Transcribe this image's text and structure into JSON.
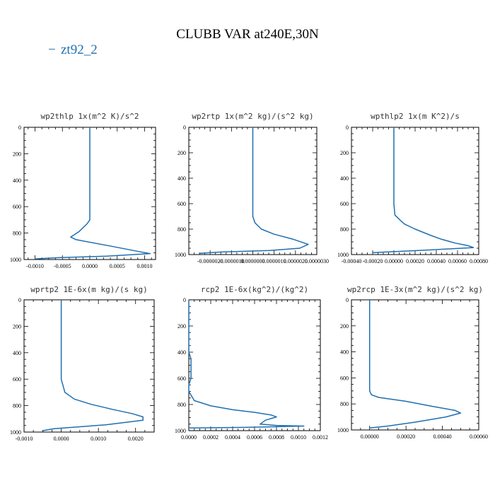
{
  "figure": {
    "title": "CLUBB VAR at240E,30N",
    "legend": {
      "line_symbol": "−",
      "label": "zt92_2",
      "color": "#1f6fb0"
    }
  },
  "chart_data": [
    {
      "type": "line",
      "title": "wp2thlp   1x(m^2 K)/s^2",
      "series_name": "zt92_2",
      "xlim": [
        -0.0012,
        0.0012
      ],
      "xticks": [
        -0.001,
        -0.0005,
        0,
        0.0005,
        0.001
      ],
      "xtick_labels": [
        "-0.0010",
        "-0.0005",
        "0.0000",
        "0.0005",
        "0.0010"
      ],
      "ylim": [
        0,
        1000
      ],
      "yticks": [
        0,
        200,
        400,
        600,
        800,
        1000
      ],
      "ytick_labels": [
        "0",
        "200",
        "400",
        "600",
        "800",
        "1000"
      ],
      "x": [
        0.0,
        0.0,
        0.0,
        0.0,
        -5e-05,
        -0.0002,
        -0.00035,
        -0.00025,
        0.0004,
        0.0009,
        0.0011,
        0.0003,
        -0.00055,
        -0.001
      ],
      "y": [
        0,
        200,
        400,
        700,
        730,
        790,
        830,
        850,
        900,
        940,
        955,
        975,
        985,
        995
      ]
    },
    {
      "type": "line",
      "title": "wp2rtp   1x(m^2 kg)/(s^2 kg)",
      "series_name": "zt92_2",
      "xlim": [
        -3e-06,
        3e-06
      ],
      "xticks": [
        -2e-06,
        -1e-06,
        0,
        1e-06,
        2e-06,
        3e-06
      ],
      "xtick_labels": [
        "-0.0000020",
        "-0.0000010",
        "0.0000000",
        "0.0000010",
        "0.0000020",
        "0.0000030"
      ],
      "ylim": [
        0,
        1000
      ],
      "yticks": [
        0,
        200,
        400,
        600,
        800,
        1000
      ],
      "ytick_labels": [
        "0",
        "200",
        "400",
        "600",
        "800",
        "1000"
      ],
      "x": [
        0.0,
        0.0,
        0.0,
        0.0,
        1e-07,
        4e-07,
        1e-06,
        1.9e-06,
        2.6e-06,
        2.2e-06,
        8e-07,
        -1.5e-06,
        -2.5e-06
      ],
      "y": [
        0,
        300,
        600,
        700,
        750,
        800,
        840,
        880,
        920,
        950,
        968,
        980,
        990
      ]
    },
    {
      "type": "line",
      "title": "wpthlp2   1x(m K^2)/s",
      "series_name": "zt92_2",
      "xlim": [
        -0.0004,
        0.0008
      ],
      "xticks": [
        -0.0004,
        -0.0002,
        0,
        0.0002,
        0.0004,
        0.0006,
        0.0008
      ],
      "xtick_labels": [
        "-0.00040",
        "-0.00020",
        "0.00000",
        "0.00020",
        "0.00040",
        "0.00060",
        "0.00080"
      ],
      "ylim": [
        0,
        1000
      ],
      "yticks": [
        0,
        200,
        400,
        600,
        800,
        1000
      ],
      "ytick_labels": [
        "0",
        "200",
        "400",
        "600",
        "800",
        "1000"
      ],
      "x": [
        0.0,
        0.0,
        0.0,
        1e-05,
        6e-05,
        0.0001,
        0.0002,
        0.00035,
        0.00045,
        0.00058,
        0.0007,
        0.00075,
        0.0003,
        -0.0002
      ],
      "y": [
        0,
        300,
        600,
        690,
        730,
        760,
        800,
        850,
        880,
        910,
        930,
        945,
        965,
        985
      ]
    },
    {
      "type": "line",
      "title": "wprtp2   1E-6x(m kg)/(s kg)",
      "series_name": "zt92_2",
      "xlim": [
        -0.001,
        0.0025
      ],
      "xticks": [
        -0.001,
        0,
        0.001,
        0.002
      ],
      "xtick_labels": [
        "-0.0010",
        "0.0000",
        "0.0010",
        "0.0020"
      ],
      "ylim": [
        0,
        1000
      ],
      "yticks": [
        0,
        200,
        400,
        600,
        800,
        1000
      ],
      "ytick_labels": [
        "0",
        "200",
        "400",
        "600",
        "800",
        "1000"
      ],
      "x": [
        0.0,
        0.0,
        0.0,
        0.0001,
        0.00035,
        0.0008,
        0.0014,
        0.0019,
        0.0022,
        0.0022,
        0.0012,
        -0.0002,
        -0.0005
      ],
      "y": [
        0,
        300,
        600,
        700,
        750,
        790,
        830,
        860,
        885,
        910,
        945,
        975,
        990
      ]
    },
    {
      "type": "line",
      "title": "rcp2   1E-6x(kg^2)/(kg^2)",
      "series_name": "zt92_2",
      "xlim": [
        0,
        0.0012
      ],
      "xticks": [
        0,
        0.0002,
        0.0004,
        0.0006,
        0.0008,
        0.001,
        0.0012
      ],
      "xtick_labels": [
        "0.0000",
        "0.0002",
        "0.0004",
        "0.0006",
        "0.0008",
        "0.0010",
        "0.0012"
      ],
      "ylim": [
        0,
        1000
      ],
      "yticks": [
        0,
        200,
        400,
        600,
        800,
        1000
      ],
      "ytick_labels": [
        "0",
        "200",
        "400",
        "600",
        "800",
        "1000"
      ],
      "x": [
        0.0,
        0.0,
        2e-05,
        2e-05,
        0.0,
        0.0,
        5e-05,
        0.0002,
        0.0004,
        0.0006,
        0.00075,
        0.0008,
        0.0007,
        0.00065,
        0.0008,
        0.00105,
        0.0005,
        0.0
      ],
      "y": [
        0,
        400,
        450,
        600,
        650,
        700,
        770,
        810,
        840,
        860,
        880,
        895,
        920,
        950,
        960,
        965,
        975,
        980
      ]
    },
    {
      "type": "line",
      "title": "wp2rcp   1E-3x(m^2 kg)/(s^2 kg)",
      "series_name": "zt92_2",
      "xlim": [
        -0.0001,
        0.0006
      ],
      "xticks": [
        0,
        0.0002,
        0.0004,
        0.0006
      ],
      "xtick_labels": [
        "0.00000",
        "0.00020",
        "0.00040",
        "0.00060"
      ],
      "ylim": [
        0,
        1000
      ],
      "yticks": [
        0,
        200,
        400,
        600,
        800,
        1000
      ],
      "ytick_labels": [
        "0",
        "200",
        "400",
        "600",
        "800",
        "1000"
      ],
      "x": [
        0.0,
        0.0,
        0.0,
        1e-05,
        5e-05,
        0.0002,
        0.00035,
        0.00047,
        0.0005,
        0.00042,
        0.00025,
        0.0001,
        0.0
      ],
      "y": [
        0,
        400,
        700,
        730,
        750,
        780,
        820,
        850,
        870,
        900,
        940,
        970,
        985
      ]
    }
  ]
}
